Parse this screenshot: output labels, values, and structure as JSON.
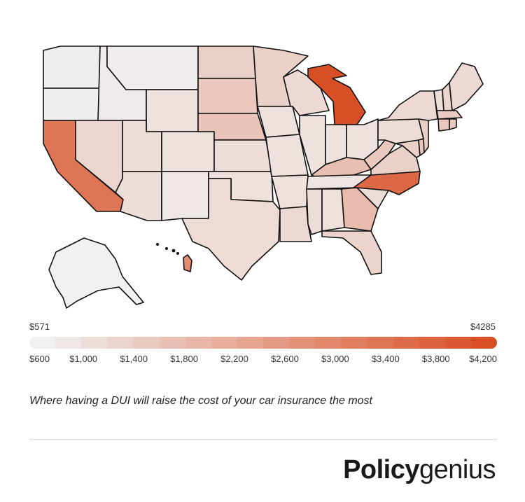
{
  "legend": {
    "min_label": "$571",
    "max_label": "$4285",
    "min_value": 571,
    "max_value": 4285,
    "color_low": "#f0f0f0",
    "color_high": "#d94f25",
    "ticks": [
      {
        "label": "$600",
        "value": 600
      },
      {
        "label": "$1,000",
        "value": 1000
      },
      {
        "label": "$1,400",
        "value": 1400
      },
      {
        "label": "$1,800",
        "value": 1800
      },
      {
        "label": "$2,200",
        "value": 2200
      },
      {
        "label": "$2,600",
        "value": 2600
      },
      {
        "label": "$3,000",
        "value": 3000
      },
      {
        "label": "$3,400",
        "value": 3400
      },
      {
        "label": "$3,800",
        "value": 3800
      },
      {
        "label": "$4,200",
        "value": 4200
      }
    ]
  },
  "caption": "Where having a DUI will raise the cost of your car insurance the most",
  "brand": {
    "bold": "Policy",
    "light": "genius"
  },
  "map_data": {
    "metric": "DUI insurance increase",
    "states": {
      "WA": 620,
      "OR": 600,
      "CA": 3400,
      "NV": 1200,
      "ID": 700,
      "MT": 650,
      "WY": 900,
      "UT": 1000,
      "AZ": 1000,
      "CO": 900,
      "NM": 750,
      "ND": 1300,
      "SD": 1500,
      "NE": 1600,
      "KS": 1000,
      "OK": 950,
      "TX": 1050,
      "MN": 1300,
      "IA": 900,
      "MO": 900,
      "AR": 950,
      "LA": 1100,
      "WI": 1100,
      "IL": 900,
      "MI": 4285,
      "IN": 900,
      "OH": 900,
      "KY": 1700,
      "TN": 850,
      "MS": 1000,
      "AL": 950,
      "GA": 1800,
      "FL": 1250,
      "SC": 1000,
      "NC": 3700,
      "VA": 1300,
      "WV": 1500,
      "PA": 1000,
      "NY": 1100,
      "VT": 1000,
      "NH": 1200,
      "ME": 1100,
      "MA": 1400,
      "CT": 1500,
      "RI": 1500,
      "NJ": 1300,
      "DE": 1500,
      "MD": 1300,
      "AK": 571,
      "HI": 2900
    }
  }
}
